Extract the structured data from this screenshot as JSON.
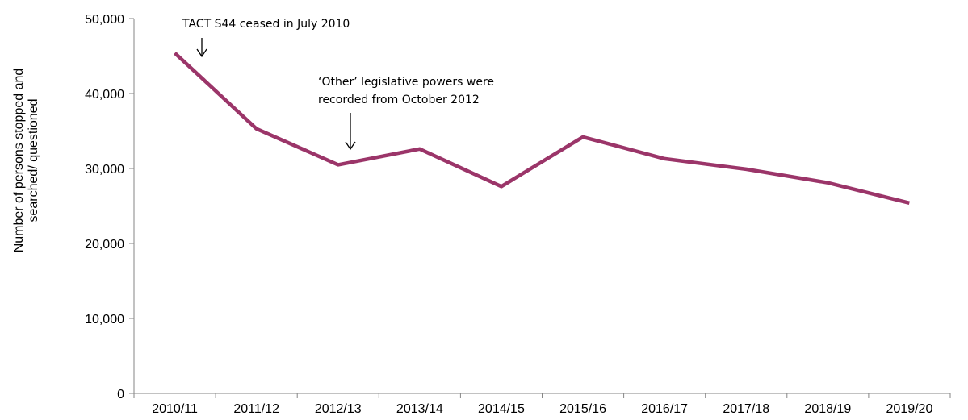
{
  "chart_data": {
    "type": "line",
    "categories": [
      "2010/11",
      "2011/12",
      "2012/13",
      "2013/14",
      "2014/15",
      "2015/16",
      "2016/17",
      "2017/18",
      "2018/19",
      "2019/20"
    ],
    "series": [
      {
        "values": [
          45400,
          35300,
          30500,
          32600,
          27600,
          34200,
          31300,
          29900,
          28100,
          25400
        ]
      }
    ],
    "ylabel_lines": [
      "Number of persons stopped and",
      "searched/ questioned"
    ],
    "ylim": [
      0,
      50000
    ],
    "yticks": [
      0,
      10000,
      20000,
      30000,
      40000,
      50000
    ],
    "ytick_labels": [
      "0",
      "10,000",
      "20,000",
      "30,000",
      "40,000",
      "50,000"
    ],
    "grid": false,
    "legend": "none",
    "line_color": "#9b3569",
    "annotations": [
      {
        "lines": [
          "TACT S44 ceased in July 2010"
        ],
        "category_index": 0
      },
      {
        "lines": [
          "‘Other’ legislative powers were",
          "recorded from October 2012"
        ],
        "category_index": 2
      }
    ]
  }
}
